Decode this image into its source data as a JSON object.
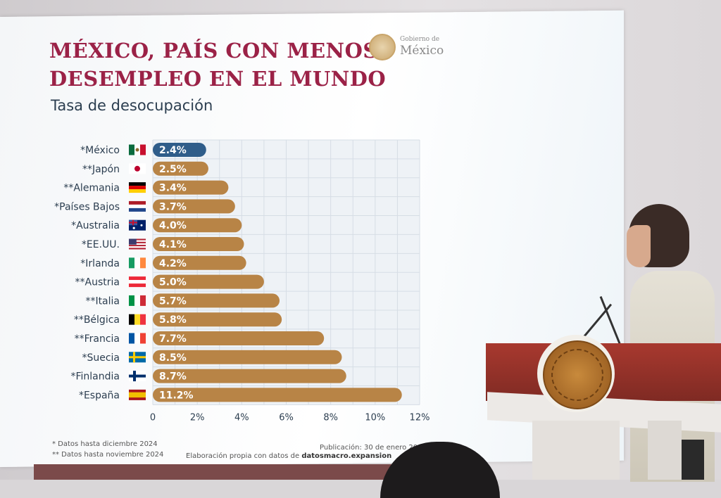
{
  "slide": {
    "title_line1": "MÉXICO, PAÍS CON MENOS",
    "title_line2": "DESEMPLEO EN EL MUNDO",
    "subtitle": "Tasa de desocupación",
    "logo_small": "Gobierno de",
    "logo_big": "México",
    "footnote1": "* Datos hasta diciembre 2024",
    "footnote2": "** Datos hasta noviembre 2024",
    "publication": "Publicación: 30 de enero 20",
    "source_prefix": "Elaboración propia con datos de ",
    "source_site": "datosmacro.expansion"
  },
  "colors": {
    "title": "#9b2247",
    "highlight_bar": "#2f5d8a",
    "bar": "#b88446",
    "grid": "#d6dde5"
  },
  "chart_data": {
    "type": "bar",
    "orientation": "horizontal",
    "title": "Tasa de desocupación",
    "categories": [
      "*México",
      "**Japón",
      "**Alemania",
      "*Países Bajos",
      "*Australia",
      "*EE.UU.",
      "*Irlanda",
      "**Austria",
      "**Italia",
      "**Bélgica",
      "**Francia",
      "*Suecia",
      "*Finlandia",
      "*España"
    ],
    "flags": [
      "mexico-flag-icon",
      "japan-flag-icon",
      "germany-flag-icon",
      "netherlands-flag-icon",
      "australia-flag-icon",
      "usa-flag-icon",
      "ireland-flag-icon",
      "austria-flag-icon",
      "italy-flag-icon",
      "belgium-flag-icon",
      "france-flag-icon",
      "sweden-flag-icon",
      "finland-flag-icon",
      "spain-flag-icon"
    ],
    "values": [
      2.4,
      2.5,
      3.4,
      3.7,
      4.0,
      4.1,
      4.2,
      5.0,
      5.7,
      5.8,
      7.7,
      8.5,
      8.7,
      11.2
    ],
    "value_labels": [
      "2.4%",
      "2.5%",
      "3.4%",
      "3.7%",
      "4.0%",
      "4.1%",
      "4.2%",
      "5.0%",
      "5.7%",
      "5.8%",
      "7.7%",
      "8.5%",
      "8.7%",
      "11.2%"
    ],
    "highlight": "*México",
    "xlim": [
      0,
      12
    ],
    "xticks": [
      0,
      2,
      4,
      6,
      8,
      10,
      12
    ],
    "xtick_labels": [
      "0",
      "2%",
      "4%",
      "6%",
      "8%",
      "10%",
      "12%"
    ],
    "grid": true
  }
}
